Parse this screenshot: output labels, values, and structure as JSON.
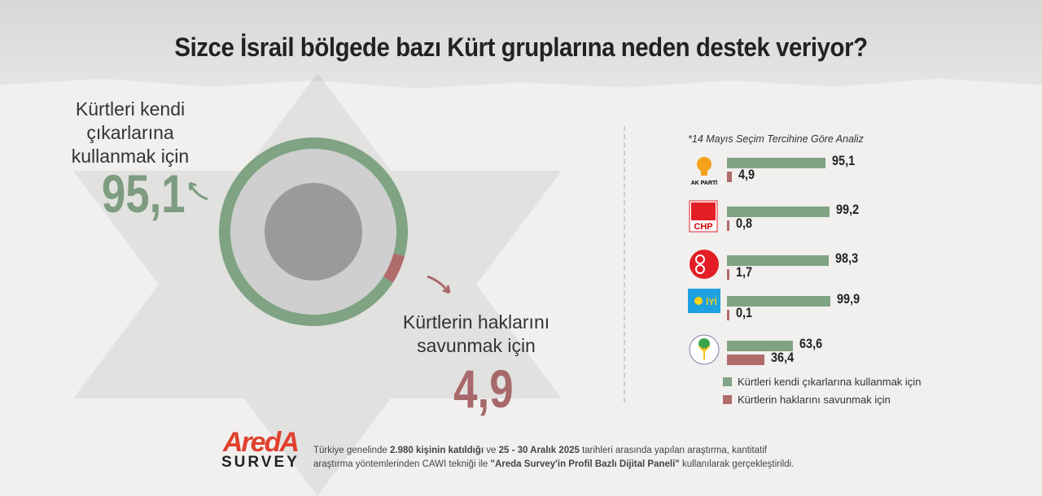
{
  "title": "Sizce İsrail bölgede bazı Kürt gruplarına neden destek veriyor?",
  "colors": {
    "green": "#7fa383",
    "red": "#b06b6b"
  },
  "chart_data": [
    {
      "type": "pie",
      "subtype": "donut",
      "categories": [
        "Kürtleri kendi çıkarlarına kullanmak için",
        "Kürtlerin haklarını savunmak için"
      ],
      "values": [
        95.1,
        4.9
      ],
      "labels": [
        "95,1",
        "4,9"
      ]
    },
    {
      "type": "bar",
      "orientation": "horizontal",
      "title": "*14 Mayıs Seçim Tercihine Göre Analiz",
      "categories": [
        "AK PARTİ",
        "CHP",
        "MHP",
        "İYİ",
        "DEM"
      ],
      "series": [
        {
          "name": "Kürtleri kendi çıkarlarına kullanmak için",
          "values": [
            95.1,
            99.2,
            98.3,
            99.9,
            63.6
          ],
          "labels": [
            "95,1",
            "99,2",
            "98,3",
            "99,9",
            "63,6"
          ]
        },
        {
          "name": "Kürtlerin haklarını savunmak için",
          "values": [
            4.9,
            0.8,
            1.7,
            0.1,
            36.4
          ],
          "labels": [
            "4,9",
            "0,8",
            "1,7",
            "0,1",
            "36,4"
          ]
        }
      ],
      "legend": "bottom"
    }
  ],
  "left_label": [
    "Kürtleri kendi",
    "çıkarlarına",
    "kullanmak için"
  ],
  "left_value": "95,1",
  "right_label": [
    "Kürtlerin haklarını",
    "savunmak için"
  ],
  "right_value": "4,9",
  "logos": [
    "AK PARTİ",
    "CHP",
    "İYİ"
  ],
  "brand": {
    "name": "AredA",
    "sub": "SURVEY"
  },
  "footer": {
    "p1": "Türkiye genelinde ",
    "b1": "2.980 kişinin katıldığı",
    "p2": " ve ",
    "b2": "25 - 30 Aralık 2025",
    "p3": " tarihleri arasında yapılan araştırma, kantitatif araştırma yöntemlerinden CAWI tekniği ile ",
    "b3": "\"Areda Survey'in Profil Bazlı Dijital Paneli\"",
    "p4": " kullanılarak gerçekleştirildi."
  }
}
